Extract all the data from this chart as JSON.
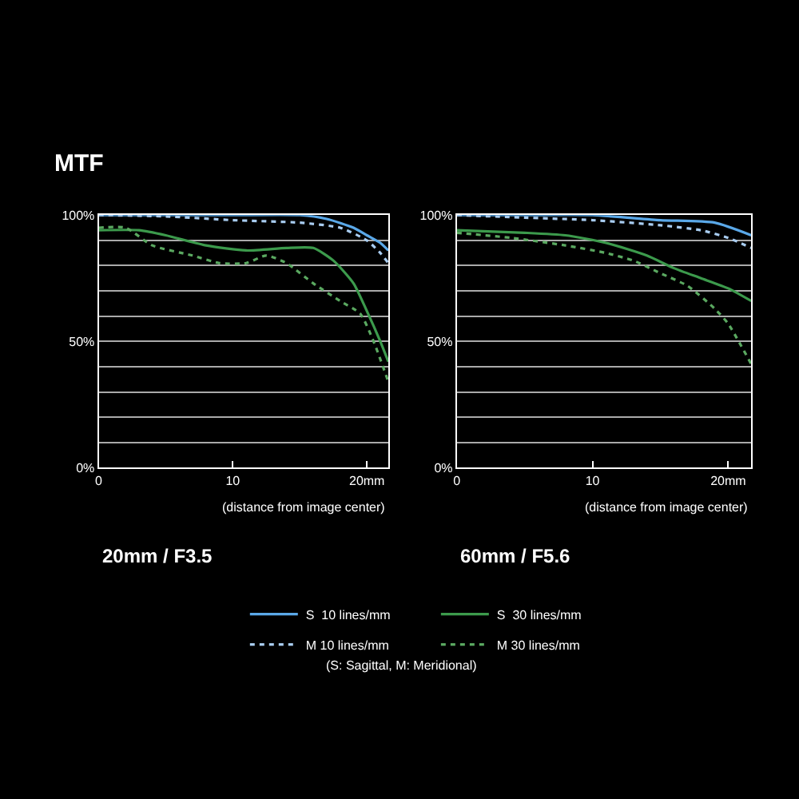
{
  "chart_data": [
    {
      "type": "line",
      "title": "MTF",
      "subtitle": "20mm / F3.5",
      "xlabel": "(distance from image center)",
      "xlim": [
        0,
        21.6
      ],
      "ylim": [
        0,
        100
      ],
      "xticks": [
        0,
        10,
        {
          "value": 20,
          "label": "20mm"
        }
      ],
      "yticks": [
        {
          "value": 0,
          "label": "0%"
        },
        {
          "value": 10,
          "label": null
        },
        {
          "value": 20,
          "label": null
        },
        {
          "value": 30,
          "label": null
        },
        {
          "value": 40,
          "label": null
        },
        {
          "value": 50,
          "label": "50%"
        },
        {
          "value": 60,
          "label": null
        },
        {
          "value": 70,
          "label": null
        },
        {
          "value": 80,
          "label": null
        },
        {
          "value": 90,
          "label": null
        },
        {
          "value": 100,
          "label": "100%"
        }
      ],
      "grid": "y",
      "legend": "bottom",
      "marker": "none",
      "annotations": [
        "(S: Sagittal, M: Meridional)"
      ],
      "series": [
        {
          "name": "S  10 lines/mm",
          "color": "#5aa8e8",
          "line_style": "solid",
          "x": [
            0,
            5,
            10,
            15,
            17,
            19,
            20,
            21,
            21.6
          ],
          "values": [
            100,
            100,
            100,
            100,
            98.5,
            95,
            92,
            89,
            86
          ]
        },
        {
          "name": "S  30 lines/mm",
          "color": "#3c9a4c",
          "line_style": "solid",
          "x": [
            0,
            3,
            5,
            8,
            11,
            14,
            16,
            17.5,
            19,
            20,
            21,
            21.6
          ],
          "values": [
            94,
            94,
            92,
            88,
            86,
            87,
            87,
            82,
            73,
            62,
            50,
            42
          ]
        },
        {
          "name": "M 10 lines/mm",
          "color": "#a8ccf0",
          "line_style": "dotted",
          "x": [
            0,
            5,
            10,
            15,
            18,
            20,
            21,
            21.6
          ],
          "values": [
            100,
            99.5,
            98,
            97,
            95,
            90,
            85,
            81
          ]
        },
        {
          "name": "M 30 lines/mm",
          "color": "#5aa860",
          "line_style": "dotted",
          "x": [
            0,
            2,
            4,
            7,
            9,
            11,
            12.5,
            14,
            16,
            18,
            19.5,
            20.5,
            21.6
          ],
          "values": [
            95,
            95,
            88,
            84,
            81,
            81,
            84,
            81,
            73,
            66,
            61,
            50,
            34
          ]
        }
      ]
    },
    {
      "type": "line",
      "subtitle": "60mm / F5.6",
      "xlabel": "(distance from image center)",
      "xlim": [
        0,
        21.7
      ],
      "ylim": [
        0,
        100
      ],
      "xticks": [
        0,
        10,
        {
          "value": 20,
          "label": "20mm"
        }
      ],
      "yticks": [
        {
          "value": 0,
          "label": "0%"
        },
        {
          "value": 10,
          "label": null
        },
        {
          "value": 20,
          "label": null
        },
        {
          "value": 30,
          "label": null
        },
        {
          "value": 40,
          "label": null
        },
        {
          "value": 50,
          "label": "50%"
        },
        {
          "value": 60,
          "label": null
        },
        {
          "value": 70,
          "label": null
        },
        {
          "value": 80,
          "label": null
        },
        {
          "value": 90,
          "label": null
        },
        {
          "value": 100,
          "label": "100%"
        }
      ],
      "grid": "y",
      "legend": false,
      "marker": "none",
      "series": [
        {
          "color": "#5aa8e8",
          "line_style": "solid",
          "x": [
            0,
            5,
            10,
            15,
            19,
            21.7
          ],
          "values": [
            100,
            100,
            100,
            98,
            97,
            92
          ]
        },
        {
          "color": "#3c9a4c",
          "line_style": "solid",
          "x": [
            0,
            5,
            8,
            11,
            14,
            16,
            18,
            20,
            21.7
          ],
          "values": [
            94,
            93,
            92,
            89,
            84,
            79,
            75,
            71,
            66
          ]
        },
        {
          "color": "#a8ccf0",
          "line_style": "dotted",
          "x": [
            0,
            5,
            10,
            15,
            18,
            20,
            21.7
          ],
          "values": [
            100,
            99,
            98,
            96,
            94,
            91,
            87
          ]
        },
        {
          "color": "#5aa860",
          "line_style": "dotted",
          "x": [
            0,
            4,
            8,
            11,
            13,
            15,
            17,
            19,
            20,
            21.7
          ],
          "values": [
            93,
            91,
            88,
            85,
            82,
            77,
            72,
            63,
            57,
            41
          ]
        }
      ]
    }
  ]
}
